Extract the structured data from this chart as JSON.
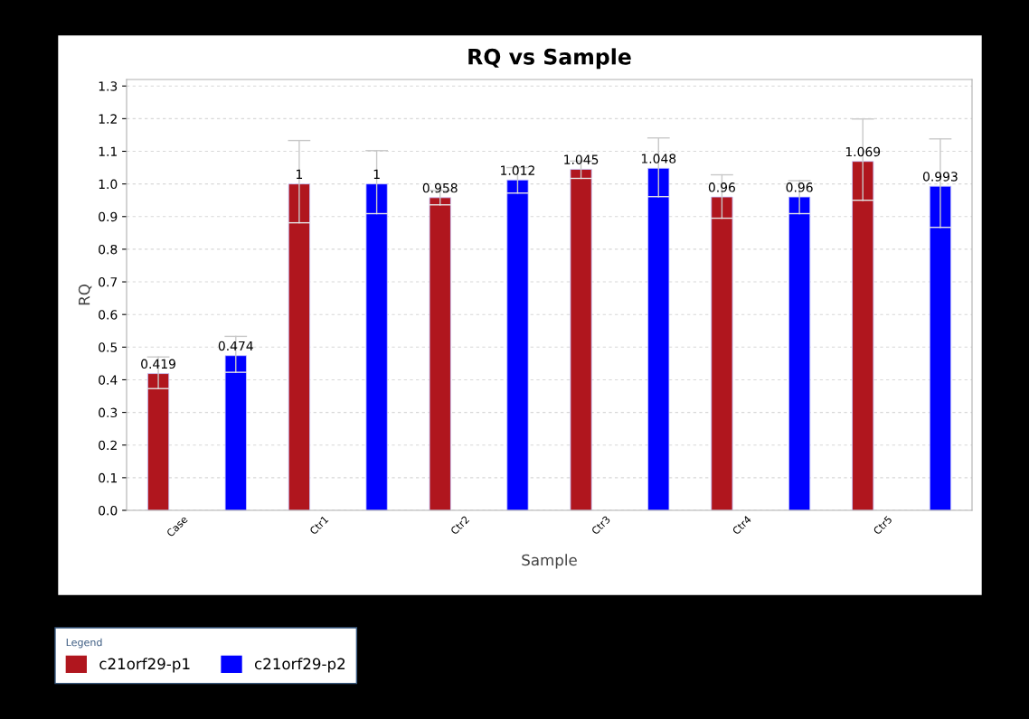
{
  "chart_data": {
    "type": "bar",
    "title": "RQ vs Sample",
    "xlabel": "Sample",
    "ylabel": "RQ",
    "categories": [
      "Case",
      "Ctr1",
      "Ctr2",
      "Ctr3",
      "Ctr4",
      "Ctr5"
    ],
    "series": [
      {
        "name": "c21orf29-p1",
        "color": "#b0161e",
        "values": [
          0.419,
          1,
          0.958,
          1.045,
          0.96,
          1.069
        ],
        "errors": [
          [
            0.373,
            0.47
          ],
          [
            0.881,
            1.133
          ],
          [
            0.936,
            0.98
          ],
          [
            1.017,
            1.07
          ],
          [
            0.895,
            1.028
          ],
          [
            0.95,
            1.199
          ]
        ]
      },
      {
        "name": "c21orf29-p2",
        "color": "#0000ff",
        "values": [
          0.474,
          1,
          1.012,
          1.048,
          0.96,
          0.993
        ],
        "errors": [
          [
            0.423,
            0.533
          ],
          [
            0.909,
            1.102
          ],
          [
            0.972,
            1.05
          ],
          [
            0.961,
            1.141
          ],
          [
            0.909,
            1.01
          ],
          [
            0.867,
            1.138
          ]
        ]
      }
    ],
    "ylim": [
      0,
      1.32
    ],
    "yticks": [
      {
        "value": 0,
        "label": "0.0"
      },
      0.1,
      0.2,
      0.3,
      0.4,
      0.5,
      0.6,
      0.7,
      0.8,
      0.9,
      {
        "value": 1,
        "label": "1.0"
      },
      1.1,
      1.2,
      1.3
    ],
    "grid": "y",
    "data_labels": true,
    "legend": "bottom",
    "legend_title": "Legend"
  }
}
